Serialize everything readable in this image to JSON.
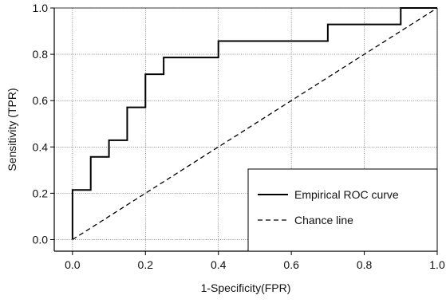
{
  "chart_data": {
    "type": "line",
    "title": "",
    "xlabel": "1-Specificity(FPR)",
    "ylabel": "Sensitivity (TPR)",
    "xlim": [
      -0.05,
      1.0
    ],
    "ylim": [
      -0.05,
      1.0
    ],
    "x_ticks": [
      0.0,
      0.2,
      0.4,
      0.6,
      0.8,
      1.0
    ],
    "y_ticks": [
      0.0,
      0.2,
      0.4,
      0.6,
      0.8,
      1.0
    ],
    "x_tick_labels": [
      "0.0",
      "0.2",
      "0.4",
      "0.6",
      "0.8",
      "1.0"
    ],
    "y_tick_labels": [
      "0.0",
      "0.2",
      "0.4",
      "0.6",
      "0.8",
      "1.0"
    ],
    "grid": true,
    "legend_position": "bottom-right",
    "series": [
      {
        "name": "Empirical ROC curve",
        "style": "solid",
        "color": "#000000",
        "points": [
          [
            0.0,
            0.0
          ],
          [
            0.0,
            0.214
          ],
          [
            0.05,
            0.214
          ],
          [
            0.05,
            0.357
          ],
          [
            0.1,
            0.357
          ],
          [
            0.1,
            0.429
          ],
          [
            0.15,
            0.429
          ],
          [
            0.15,
            0.571
          ],
          [
            0.2,
            0.571
          ],
          [
            0.2,
            0.714
          ],
          [
            0.25,
            0.714
          ],
          [
            0.25,
            0.786
          ],
          [
            0.4,
            0.786
          ],
          [
            0.4,
            0.857
          ],
          [
            0.7,
            0.857
          ],
          [
            0.7,
            0.929
          ],
          [
            0.9,
            0.929
          ],
          [
            0.9,
            1.0
          ],
          [
            1.0,
            1.0
          ]
        ]
      },
      {
        "name": "Chance line",
        "style": "dashed",
        "color": "#000000",
        "points": [
          [
            0.0,
            0.0
          ],
          [
            1.0,
            1.0
          ]
        ]
      }
    ]
  }
}
